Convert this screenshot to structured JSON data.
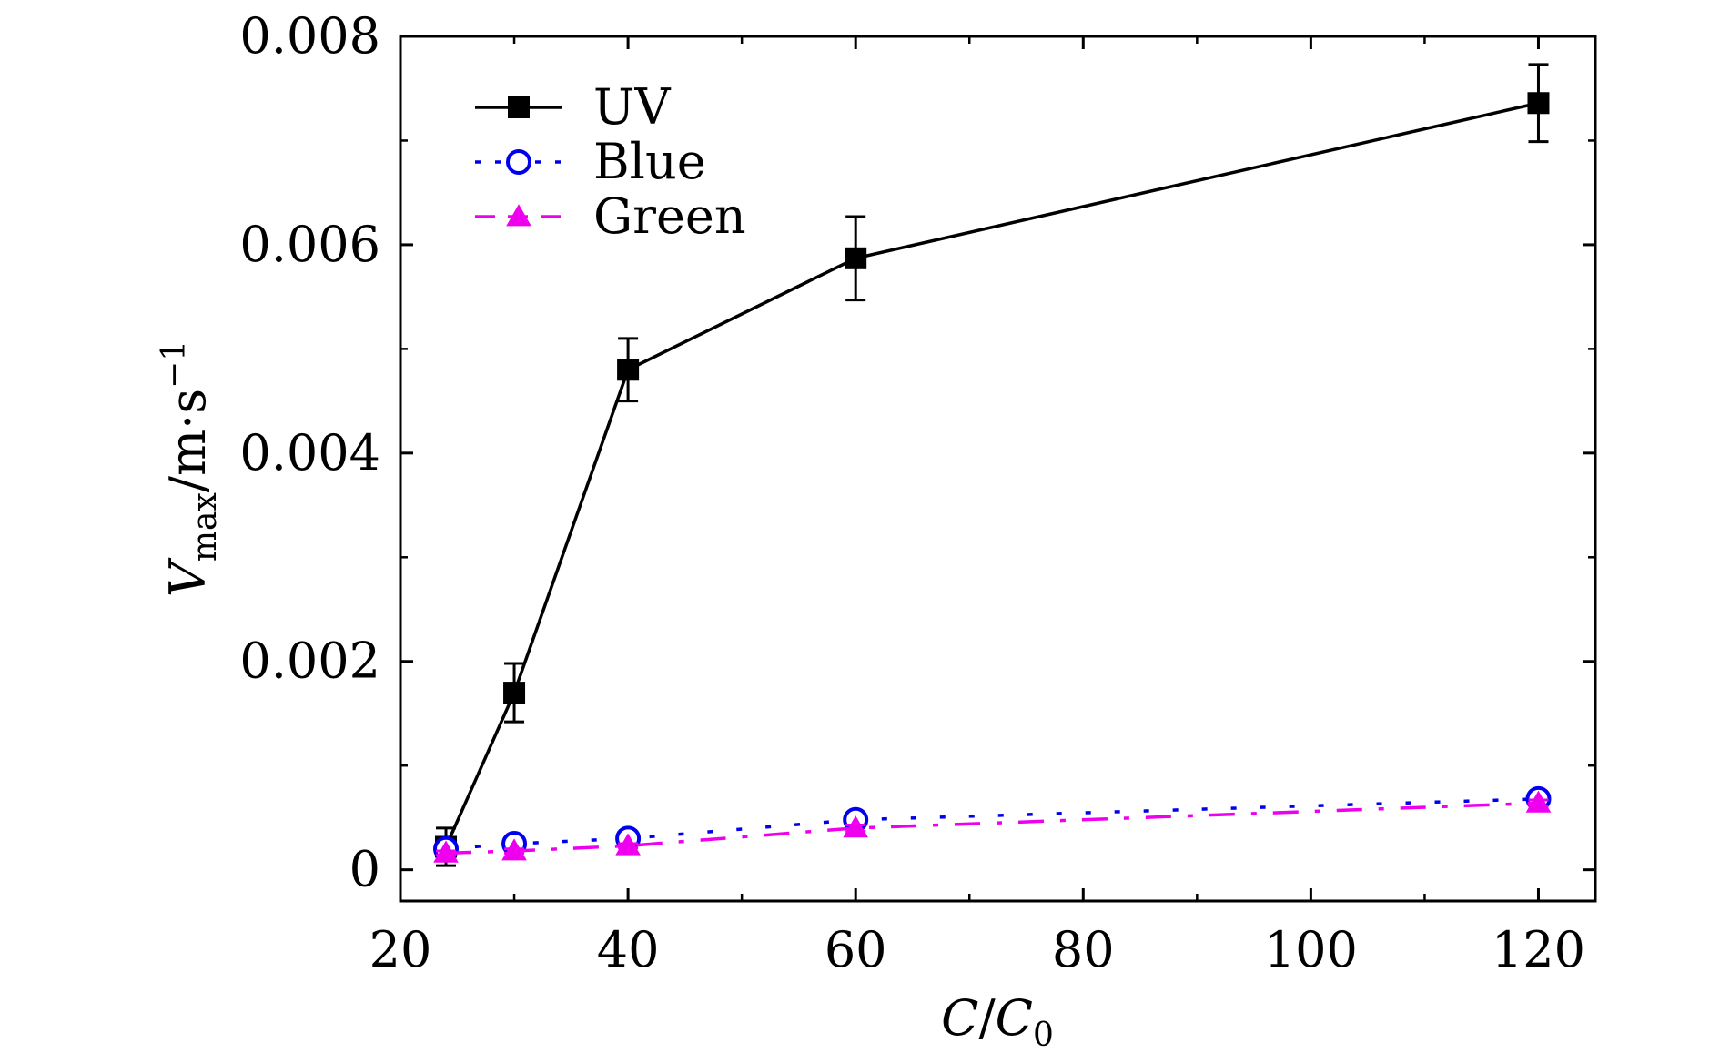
{
  "chart_data": {
    "type": "line",
    "xlabel": "C/C0",
    "ylabel": "Vmax/m·s−1",
    "xlim": [
      20,
      125
    ],
    "ylim": [
      -0.0003,
      0.008
    ],
    "x_ticks": [
      20,
      40,
      60,
      80,
      100,
      120
    ],
    "x_tick_labels": [
      "20",
      "40",
      "60",
      "80",
      "100",
      "120"
    ],
    "y_ticks": [
      0,
      0.002,
      0.004,
      0.006,
      0.008
    ],
    "y_tick_labels": [
      "0",
      "0.002",
      "0.004",
      "0.006",
      "0.008"
    ],
    "x": [
      24,
      30,
      40,
      60,
      120
    ],
    "series": [
      {
        "name": "UV",
        "values": [
          0.00022,
          0.0017,
          0.0048,
          0.00587,
          0.00736
        ],
        "error": [
          0.00018,
          0.00028,
          0.0003,
          0.0004,
          0.00037
        ],
        "color": "#000000",
        "line": "solid",
        "marker": "filled-square"
      },
      {
        "name": "Blue",
        "values": [
          0.0002,
          0.00025,
          0.0003,
          0.00048,
          0.00068
        ],
        "error": [
          2e-05,
          2e-05,
          3e-05,
          4e-05,
          4e-05
        ],
        "color": "#0000ee",
        "line": "dotted",
        "marker": "open-circle"
      },
      {
        "name": "Green",
        "values": [
          0.00016,
          0.00018,
          0.00023,
          0.0004,
          0.00064
        ],
        "error": [
          2e-05,
          2e-05,
          2e-05,
          3e-05,
          3e-05
        ],
        "color": "#ee00ee",
        "line": "dash-dot",
        "marker": "filled-triangle"
      }
    ],
    "legend_position": "top-left",
    "grid": false
  }
}
